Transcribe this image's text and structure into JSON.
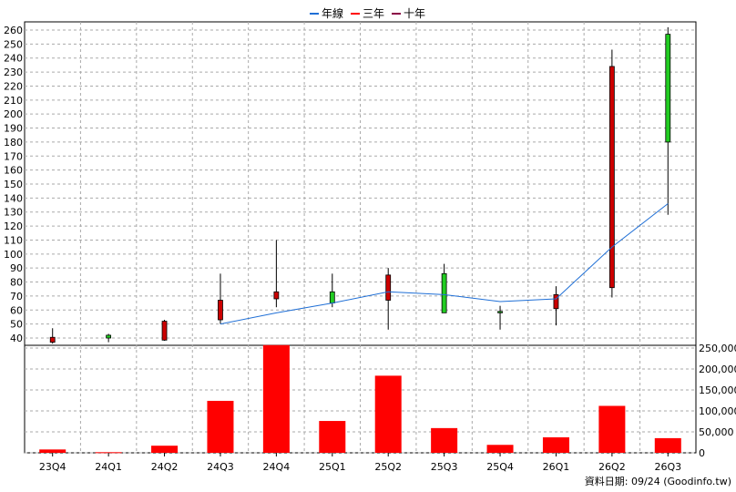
{
  "chart_data": {
    "type": "candlestick",
    "legend": [
      {
        "label": "年線",
        "color": "#1f6fd6"
      },
      {
        "label": "三年",
        "color": "#ff0000"
      },
      {
        "label": "十年",
        "color": "#8b0046"
      }
    ],
    "categories": [
      "23Q4",
      "24Q1",
      "24Q2",
      "24Q3",
      "24Q4",
      "25Q1",
      "25Q2",
      "25Q3",
      "25Q4",
      "26Q1",
      "26Q2",
      "26Q3"
    ],
    "price_axis": {
      "min": 40,
      "max": 260,
      "step": 10
    },
    "volume_axis": {
      "min": 0,
      "max": 250000,
      "step": 50000,
      "tick_labels": [
        "0",
        "50,000",
        "100,000",
        "150,000",
        "200,000",
        "250,000"
      ]
    },
    "candles": [
      {
        "o": 40.5,
        "h": 47,
        "l": 36,
        "c": 37
      },
      {
        "o": 40,
        "h": 43,
        "l": 37,
        "c": 42
      },
      {
        "o": 52,
        "h": 53,
        "l": 38,
        "c": 38.5
      },
      {
        "o": 67,
        "h": 86,
        "l": 50,
        "c": 53
      },
      {
        "o": 73,
        "h": 110,
        "l": 62,
        "c": 68
      },
      {
        "o": 65,
        "h": 86,
        "l": 62,
        "c": 73
      },
      {
        "o": 85,
        "h": 90,
        "l": 46,
        "c": 67
      },
      {
        "o": 58,
        "h": 93,
        "l": 58,
        "c": 86
      },
      {
        "o": 59,
        "h": 63,
        "l": 46,
        "c": 59
      },
      {
        "o": 71,
        "h": 77,
        "l": 49,
        "c": 61
      },
      {
        "o": 234,
        "h": 246,
        "l": 69,
        "c": 76
      },
      {
        "o": 180,
        "h": 262,
        "l": 128,
        "c": 257
      }
    ],
    "moving_average_year": [
      null,
      null,
      null,
      50,
      58,
      65,
      73,
      71,
      66,
      68,
      105,
      136
    ],
    "volume": [
      8000,
      1500,
      17000,
      124000,
      257000,
      76000,
      184000,
      59000,
      19000,
      37000,
      112000,
      35000
    ],
    "credit": "資料日期: 09/24  (Goodinfo.tw)"
  }
}
